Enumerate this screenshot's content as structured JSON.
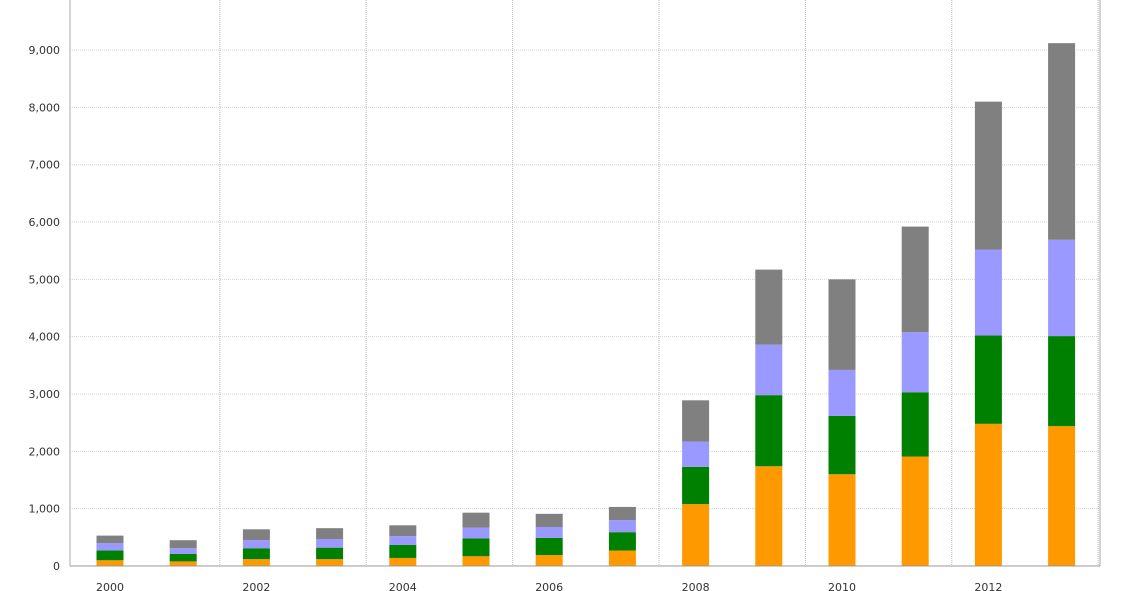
{
  "chart_data": {
    "type": "bar",
    "stacked": true,
    "categories": [
      "2000",
      "2001",
      "2002",
      "2003",
      "2004",
      "2005",
      "2006",
      "2007",
      "2008",
      "2009",
      "2010",
      "2011",
      "2012",
      "2013"
    ],
    "x_tick_labels": [
      "2000",
      "2002",
      "2004",
      "2006",
      "2008",
      "2010",
      "2012"
    ],
    "y_tick_labels": [
      "0",
      "1,000",
      "2,000",
      "3,000",
      "4,000",
      "5,000",
      "6,000",
      "7,000",
      "8,000",
      "9,000"
    ],
    "ylim": [
      0,
      10000
    ],
    "grid": true,
    "series": [
      {
        "color": "#ff9900",
        "values": [
          100,
          80,
          120,
          120,
          140,
          170,
          190,
          270,
          1080,
          1740,
          1600,
          1910,
          2480,
          2440
        ]
      },
      {
        "color": "#008000",
        "values": [
          170,
          130,
          190,
          200,
          230,
          310,
          300,
          320,
          650,
          1240,
          1020,
          1120,
          1540,
          1570
        ]
      },
      {
        "color": "#9999ff",
        "values": [
          130,
          100,
          140,
          150,
          150,
          190,
          190,
          210,
          440,
          880,
          800,
          1050,
          1500,
          1680
        ]
      },
      {
        "color": "#808080",
        "values": [
          130,
          140,
          190,
          190,
          190,
          260,
          230,
          230,
          720,
          1310,
          1580,
          1840,
          2580,
          3430
        ]
      }
    ]
  }
}
